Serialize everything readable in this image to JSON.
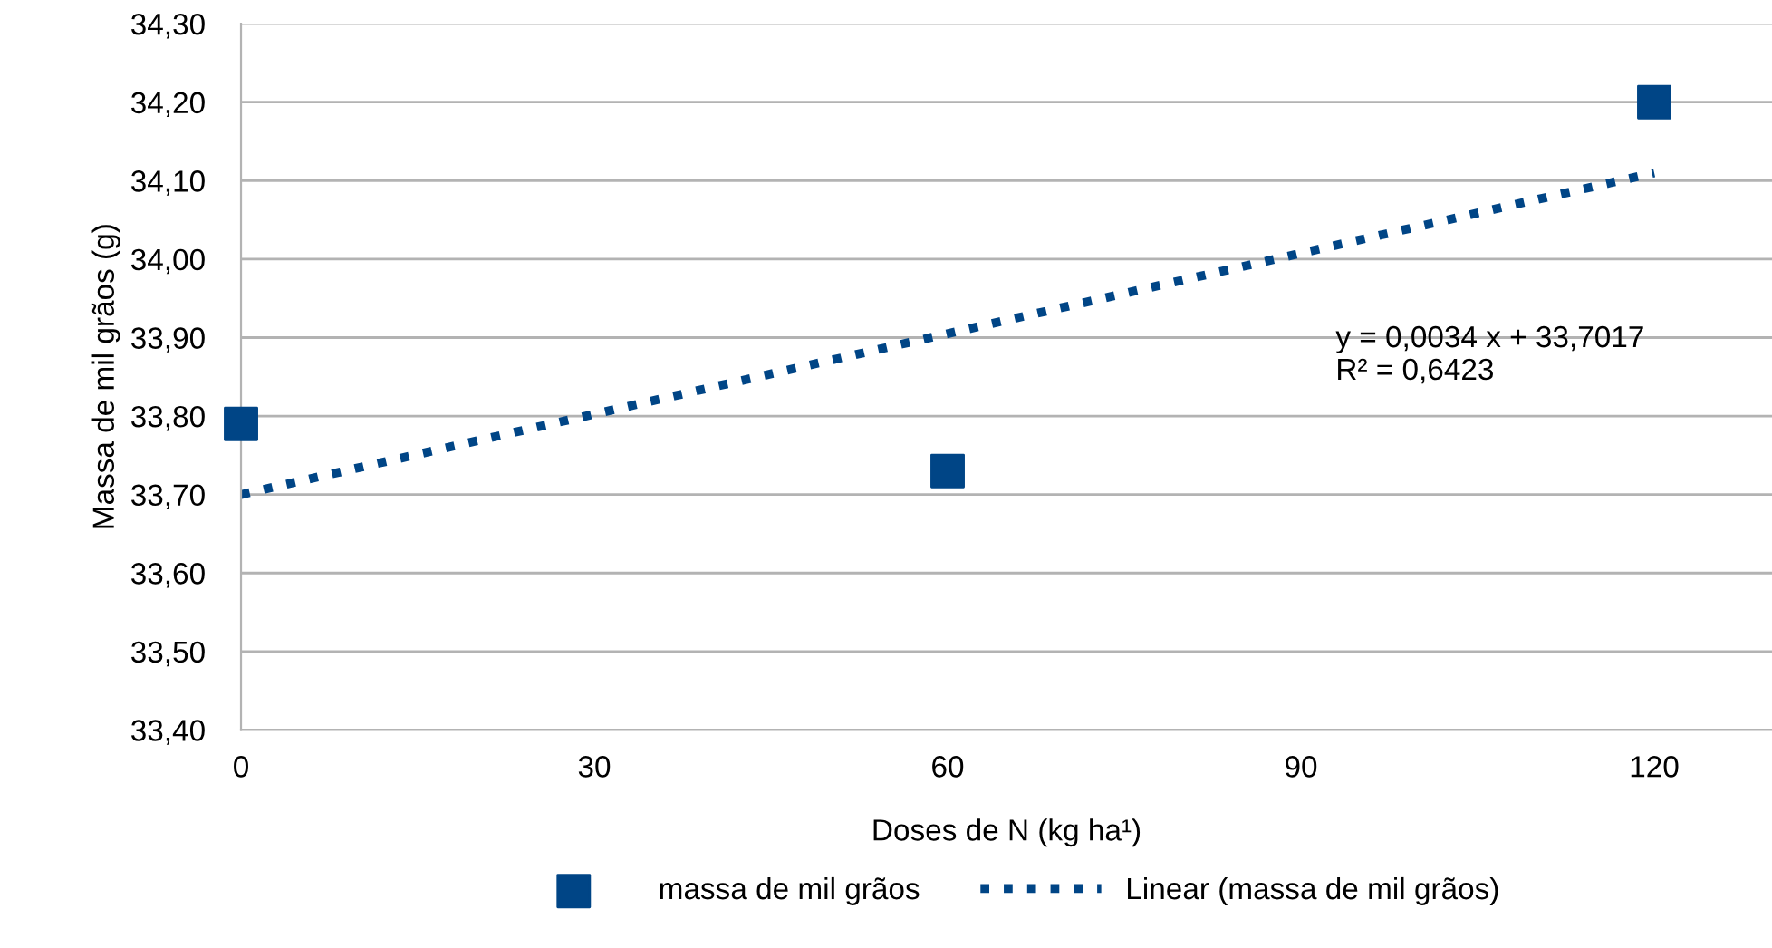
{
  "chart_data": {
    "type": "scatter",
    "xlabel": "Doses de N (kg ha¹)",
    "ylabel": "Massa de mil grãos (g)",
    "series": [
      {
        "name": "massa de mil grãos",
        "color": "#004586",
        "x": [
          0,
          60,
          120
        ],
        "values": [
          33.79,
          33.73,
          34.2
        ],
        "marker": "square"
      },
      {
        "name": "Linear (massa de mil grãos)",
        "type": "line",
        "color": "#004586",
        "x": [
          0,
          120
        ],
        "values": [
          33.7,
          34.11
        ],
        "line_style": "dotted",
        "marker": "none"
      }
    ],
    "annotations": [
      "y = 0,0034 x + 33,7017\nR² = 0,6423"
    ],
    "xlim": [
      0,
      130
    ],
    "xticks": [
      0,
      30,
      60,
      90,
      120
    ],
    "ylim": [
      33.4,
      34.3
    ],
    "yticks": [
      {
        "value": 33.4,
        "label": "33,40"
      },
      {
        "value": 33.5,
        "label": "33,50"
      },
      {
        "value": 33.6,
        "label": "33,60"
      },
      {
        "value": 33.7,
        "label": "33,70"
      },
      {
        "value": 33.8,
        "label": "33,80"
      },
      {
        "value": 33.9,
        "label": "33,90"
      },
      {
        "value": 34.0,
        "label": "34,00"
      },
      {
        "value": 34.1,
        "label": "34,10"
      },
      {
        "value": 34.2,
        "label": "34,20"
      },
      {
        "value": 34.3,
        "label": "34,30"
      }
    ],
    "grid": "y",
    "legend": "bottom"
  }
}
